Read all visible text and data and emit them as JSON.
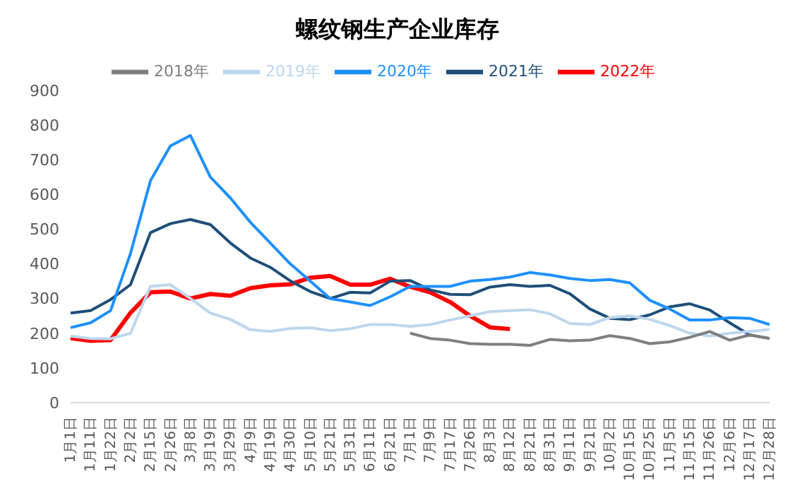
{
  "chart_data": {
    "type": "line",
    "title": "螺纹钢生产企业库存",
    "categories": [
      "1月1日",
      "1月11日",
      "1月22日",
      "2月2日",
      "2月15日",
      "2月26日",
      "3月8日",
      "3月19日",
      "3月29日",
      "4月9日",
      "4月19日",
      "4月30日",
      "5月10日",
      "5月21日",
      "5月31日",
      "6月11日",
      "6月21日",
      "7月1日",
      "7月9日",
      "7月17日",
      "7月26日",
      "8月3日",
      "8月12日",
      "8月21日",
      "8月31日",
      "9月11日",
      "9月21日",
      "10月2日",
      "10月15日",
      "10月25日",
      "11月5日",
      "11月15日",
      "11月26日",
      "12月6日",
      "12月17日",
      "12月28日"
    ],
    "series": [
      {
        "name": "2022年",
        "color": "#ff0000",
        "values": [
          186,
          178,
          180,
          259,
          318,
          320,
          300,
          313,
          308,
          330,
          338,
          341,
          360,
          365,
          340,
          340,
          357,
          334,
          318,
          290,
          250,
          217,
          212,
          null,
          null,
          null,
          null,
          null,
          null,
          null,
          null,
          null,
          null,
          null,
          null,
          null
        ]
      },
      {
        "name": "2021年",
        "color": "#1f4e79",
        "values": [
          258,
          265,
          297,
          340,
          490,
          516,
          528,
          513,
          460,
          417,
          390,
          351,
          320,
          300,
          318,
          316,
          350,
          352,
          325,
          312,
          311,
          333,
          340,
          335,
          338,
          314,
          270,
          243,
          239,
          253,
          276,
          285,
          267,
          230,
          195,
          185
        ]
      },
      {
        "name": "2020年",
        "color": "#1e90ff",
        "values": [
          216,
          230,
          265,
          430,
          640,
          740,
          770,
          650,
          590,
          520,
          460,
          400,
          350,
          300,
          290,
          280,
          305,
          335,
          335,
          335,
          350,
          355,
          362,
          375,
          368,
          358,
          352,
          355,
          345,
          295,
          270,
          238,
          238,
          245,
          243,
          225
        ]
      },
      {
        "name": "2019年",
        "color": "#bdd7ee",
        "values": [
          192,
          185,
          184,
          200,
          335,
          340,
          300,
          258,
          240,
          210,
          205,
          214,
          216,
          207,
          213,
          225,
          225,
          220,
          225,
          238,
          250,
          262,
          265,
          268,
          256,
          228,
          225,
          245,
          250,
          240,
          222,
          200,
          192,
          200,
          205,
          211
        ]
      },
      {
        "name": "2018年",
        "color": "#7f7f7f",
        "values": [
          null,
          null,
          null,
          null,
          null,
          null,
          null,
          null,
          null,
          null,
          null,
          null,
          null,
          null,
          null,
          null,
          null,
          200,
          185,
          180,
          170,
          168,
          168,
          165,
          182,
          178,
          180,
          193,
          185,
          170,
          175,
          188,
          205,
          180,
          195,
          185
        ]
      }
    ],
    "ylim": [
      0,
      900
    ],
    "yticks": [
      0,
      100,
      200,
      300,
      400,
      500,
      600,
      700,
      800,
      900
    ],
    "grid": false,
    "legend": "top",
    "marker": "none",
    "line_style": "solid"
  }
}
